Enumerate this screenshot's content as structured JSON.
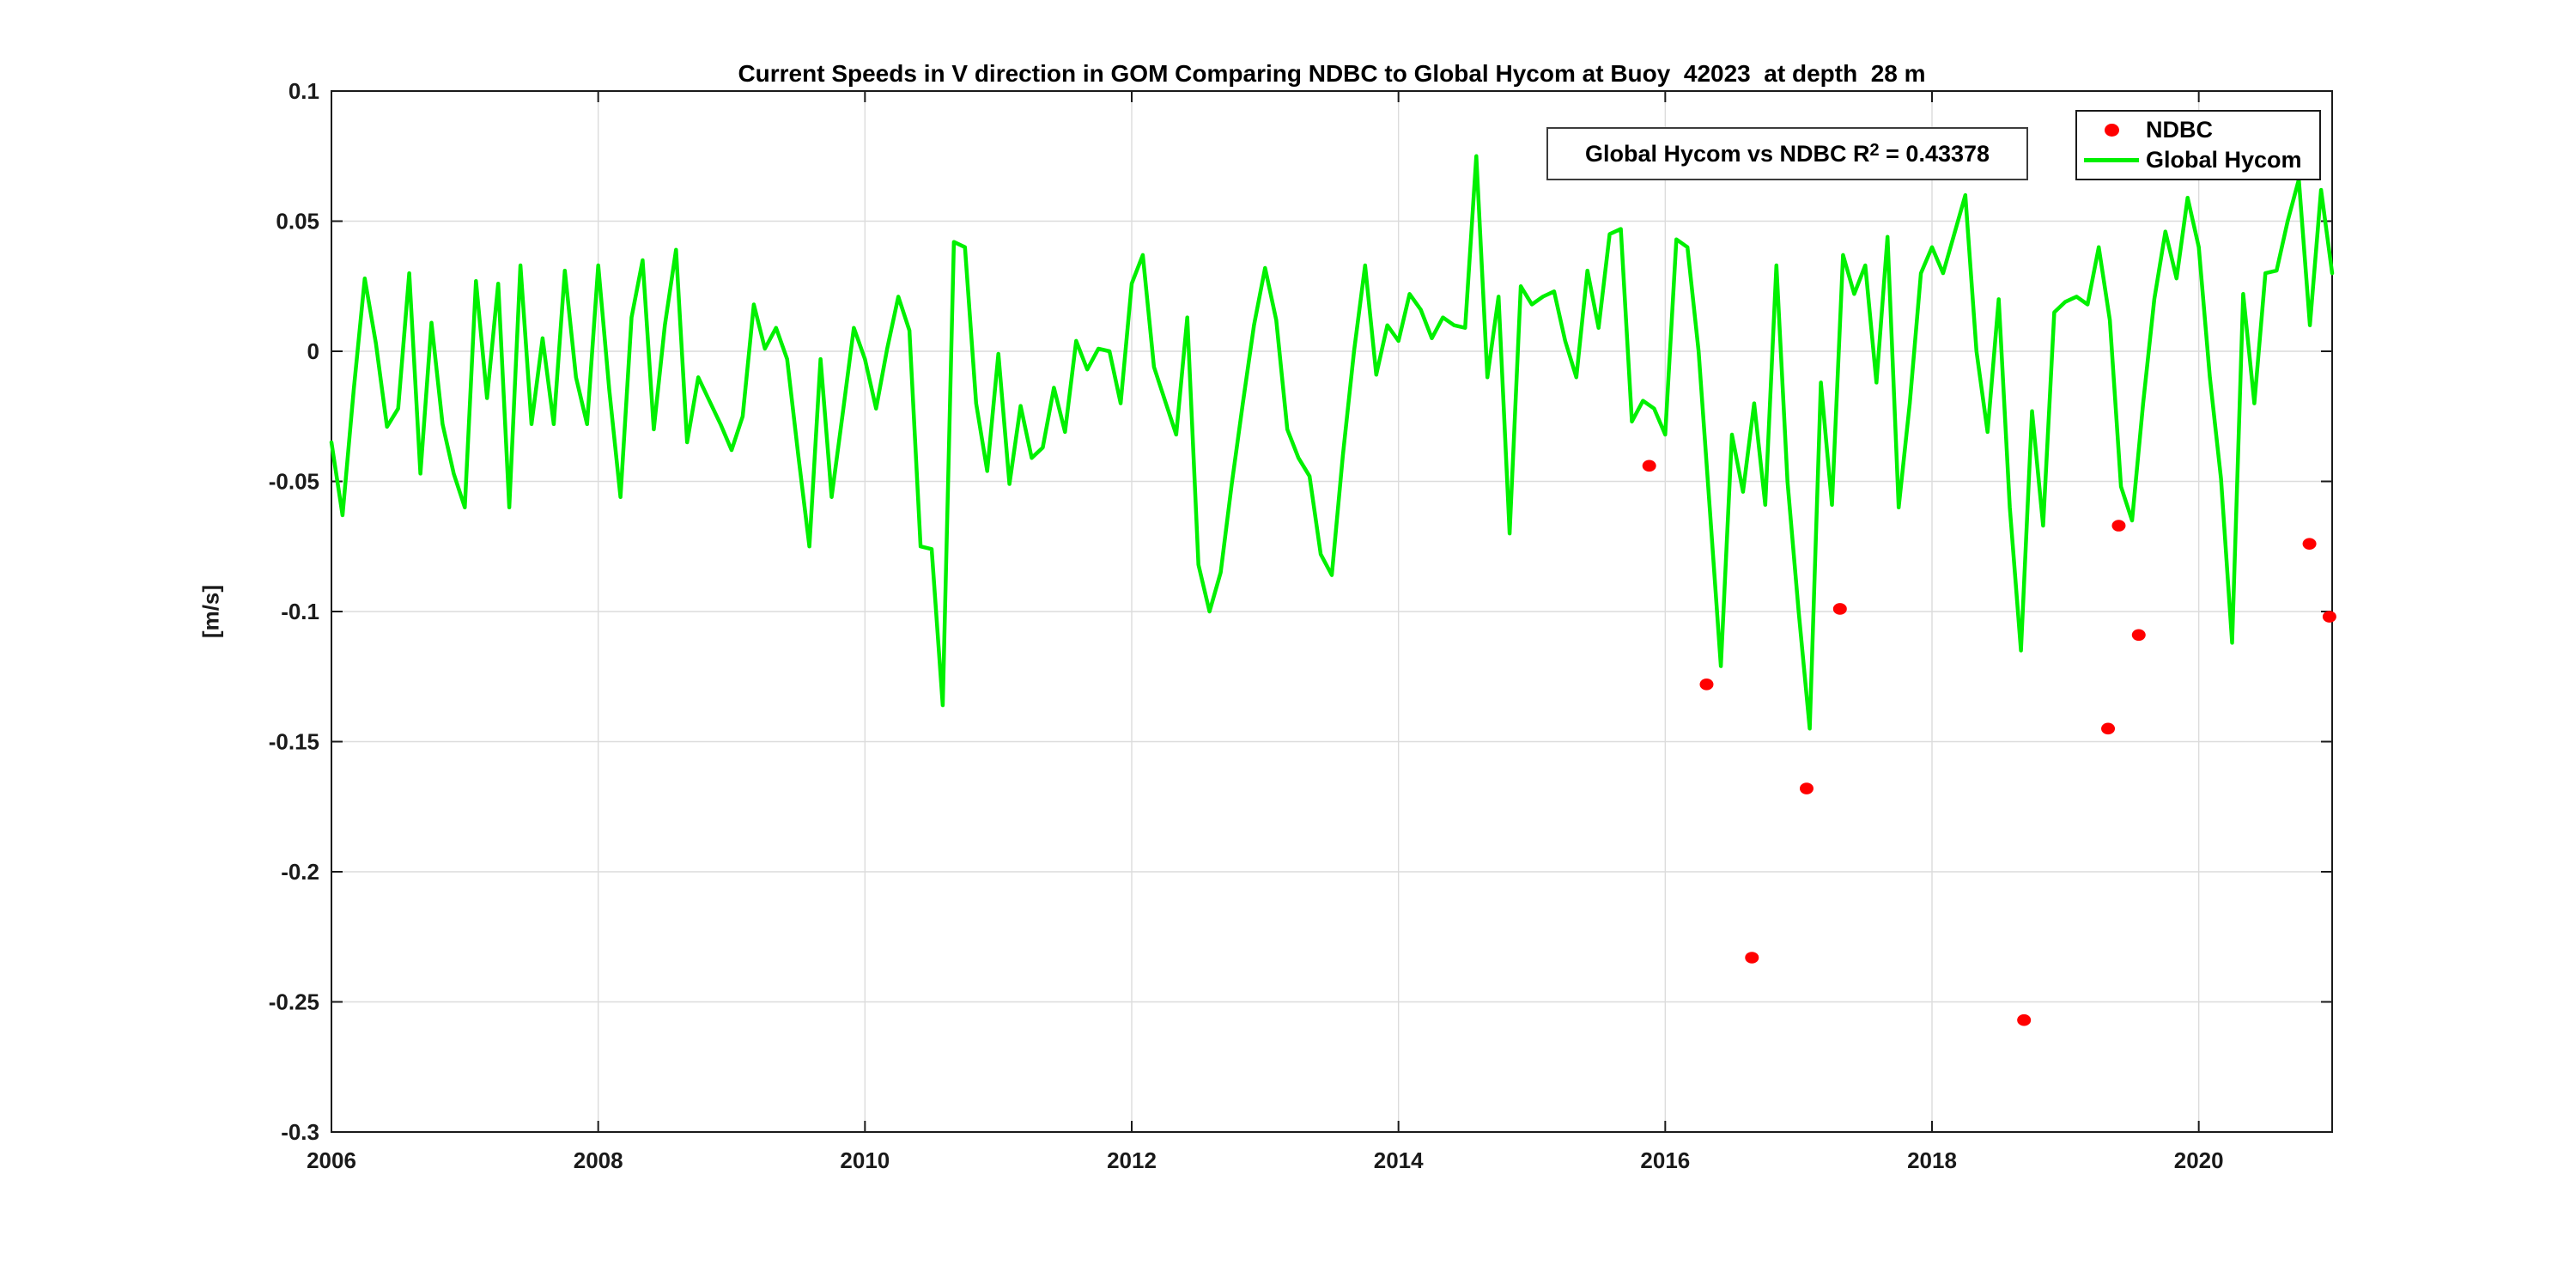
{
  "title": "Current Speeds in V direction in GOM Comparing NDBC to Global Hycom at Buoy  42023  at depth  28 m",
  "ylabel": "[m/s]",
  "annotation": {
    "prefix": "Global Hycom vs NDBC R",
    "sup": "2",
    "suffix": " = 0.43378"
  },
  "legend": [
    {
      "label": "NDBC",
      "marker": "dot-icon",
      "color": "#ff0000"
    },
    {
      "label": "Global Hycom",
      "marker": "line-icon",
      "color": "#00f000"
    }
  ],
  "colors": {
    "background": "#ffffff",
    "axis": "#1a1a1a",
    "grid": "#dcdcdc",
    "ndbc": "#ff0000",
    "hycom": "#00f000",
    "text": "#000000"
  },
  "chart_data": {
    "type": "line",
    "title": "Current Speeds in V direction in GOM Comparing NDBC to Global Hycom at Buoy  42023  at depth  28 m",
    "xlabel": "",
    "ylabel": "[m/s]",
    "xlim": [
      2006,
      2021
    ],
    "ylim": [
      -0.3,
      0.1
    ],
    "grid": true,
    "legend_position": "top-right",
    "x_ticks": [
      2006,
      2008,
      2010,
      2012,
      2014,
      2016,
      2018,
      2020
    ],
    "x_tick_labels": [
      "2006",
      "2008",
      "2010",
      "2012",
      "2014",
      "2016",
      "2018",
      "2020"
    ],
    "y_ticks": [
      0.1,
      0.05,
      0,
      -0.05,
      -0.1,
      -0.15,
      -0.2,
      -0.25,
      -0.3
    ],
    "y_tick_labels": [
      "0.1",
      "0.05",
      "0",
      "-0.05",
      "-0.1",
      "-0.15",
      "-0.2",
      "-0.25",
      "-0.3"
    ],
    "series": [
      {
        "name": "Global Hycom",
        "type": "line",
        "color": "#00f000",
        "x_start": 2006.0,
        "x_step": 0.0833333,
        "values": [
          -0.035,
          -0.063,
          -0.015,
          0.028,
          0.003,
          -0.029,
          -0.022,
          0.03,
          -0.047,
          0.011,
          -0.028,
          -0.047,
          -0.06,
          0.027,
          -0.018,
          0.026,
          -0.06,
          0.033,
          -0.028,
          0.005,
          -0.028,
          0.031,
          -0.01,
          -0.028,
          0.033,
          -0.015,
          -0.056,
          0.013,
          0.035,
          -0.03,
          0.01,
          0.039,
          -0.035,
          -0.01,
          -0.019,
          -0.028,
          -0.038,
          -0.025,
          0.018,
          0.001,
          0.009,
          -0.003,
          -0.04,
          -0.075,
          -0.003,
          -0.056,
          -0.024,
          0.009,
          -0.003,
          -0.022,
          0.001,
          0.021,
          0.008,
          -0.075,
          -0.076,
          -0.136,
          0.042,
          0.04,
          -0.02,
          -0.046,
          -0.001,
          -0.051,
          -0.021,
          -0.041,
          -0.037,
          -0.014,
          -0.031,
          0.004,
          -0.007,
          0.001,
          0.0,
          -0.02,
          0.026,
          0.037,
          -0.006,
          -0.019,
          -0.032,
          0.013,
          -0.082,
          -0.1,
          -0.085,
          -0.051,
          -0.02,
          0.01,
          0.032,
          0.012,
          -0.03,
          -0.041,
          -0.048,
          -0.078,
          -0.086,
          -0.04,
          0.0,
          0.033,
          -0.009,
          0.01,
          0.004,
          0.022,
          0.016,
          0.005,
          0.013,
          0.01,
          0.009,
          0.075,
          -0.01,
          0.021,
          -0.07,
          0.025,
          0.018,
          0.021,
          0.023,
          0.004,
          -0.01,
          0.031,
          0.009,
          0.045,
          0.047,
          -0.027,
          -0.019,
          -0.022,
          -0.032,
          0.043,
          0.04,
          0.0,
          -0.06,
          -0.121,
          -0.032,
          -0.054,
          -0.02,
          -0.059,
          0.033,
          -0.05,
          -0.1,
          -0.145,
          -0.012,
          -0.059,
          0.037,
          0.022,
          0.033,
          -0.012,
          0.044,
          -0.06,
          -0.02,
          0.03,
          0.04,
          0.03,
          0.045,
          0.06,
          0.0,
          -0.031,
          0.02,
          -0.06,
          -0.115,
          -0.023,
          -0.067,
          0.015,
          0.019,
          0.021,
          0.018,
          0.04,
          0.012,
          -0.052,
          -0.065,
          -0.02,
          0.02,
          0.046,
          0.028,
          0.059,
          0.04,
          -0.01,
          -0.049,
          -0.112,
          0.022,
          -0.02,
          0.03,
          0.031,
          0.05,
          0.066,
          0.01,
          0.062,
          0.03
        ]
      },
      {
        "name": "NDBC",
        "type": "scatter",
        "color": "#ff0000",
        "points": [
          [
            2015.88,
            -0.044
          ],
          [
            2016.31,
            -0.128
          ],
          [
            2016.65,
            -0.233
          ],
          [
            2017.06,
            -0.168
          ],
          [
            2017.31,
            -0.099
          ],
          [
            2018.69,
            -0.257
          ],
          [
            2019.32,
            -0.145
          ],
          [
            2019.4,
            -0.067
          ],
          [
            2019.55,
            -0.109
          ],
          [
            2020.83,
            -0.074
          ],
          [
            2020.98,
            -0.102
          ]
        ]
      }
    ]
  }
}
